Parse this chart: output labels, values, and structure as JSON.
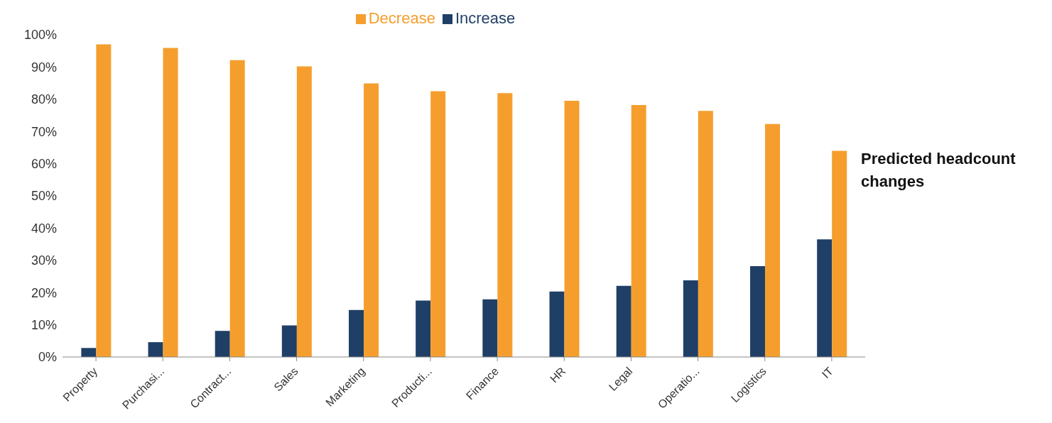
{
  "chart_data": {
    "type": "bar",
    "categories": [
      "Property",
      "Purchasi...",
      "Contract...",
      "Sales",
      "Marketing",
      "Producti...",
      "Finance",
      "HR",
      "Legal",
      "Operatio...",
      "Logistics",
      "IT"
    ],
    "series": [
      {
        "name": "Increase",
        "color": "#1f3f66",
        "values": [
          2.8,
          4.6,
          8.1,
          9.8,
          14.6,
          17.5,
          17.9,
          20.3,
          22.1,
          23.8,
          28.2,
          36.5
        ]
      },
      {
        "name": "Decrease",
        "color": "#f59e2e",
        "values": [
          97,
          95.9,
          92.1,
          90.2,
          84.9,
          82.5,
          81.9,
          79.5,
          78.2,
          76.4,
          72.3,
          64
        ]
      }
    ],
    "ylim": [
      0,
      100
    ],
    "yticks": [
      {
        "value": 0,
        "label": "0%"
      },
      {
        "value": 10,
        "label": "10%"
      },
      {
        "value": 20,
        "label": "20%"
      },
      {
        "value": 30,
        "label": "30%"
      },
      {
        "value": 40,
        "label": "40%"
      },
      {
        "value": 50,
        "label": "50%"
      },
      {
        "value": 60,
        "label": "60%"
      },
      {
        "value": 70,
        "label": "70%"
      },
      {
        "value": 80,
        "label": "80%"
      },
      {
        "value": 90,
        "label": "90%"
      },
      {
        "value": 100,
        "label": "100%"
      }
    ],
    "grid": false,
    "legend": "top",
    "annotations": [
      "Predicted headcount changes"
    ]
  }
}
